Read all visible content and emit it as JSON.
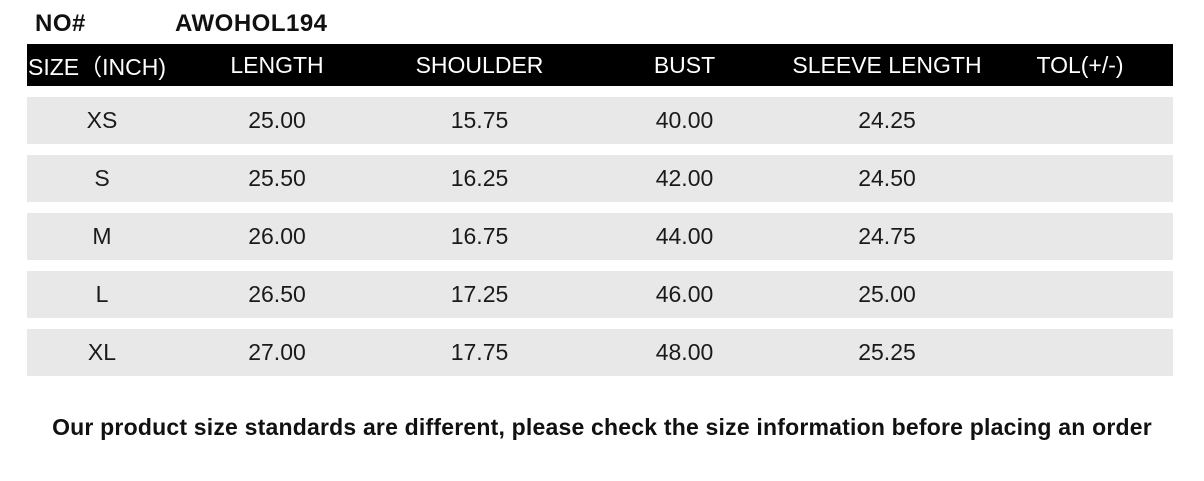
{
  "product": {
    "no_label": "NO#",
    "model_number": "AWOHOL194"
  },
  "table": {
    "columns": [
      "SIZE（INCH)",
      "LENGTH",
      "SHOULDER",
      "BUST",
      "SLEEVE LENGTH",
      "TOL(+/-)"
    ],
    "rows": [
      {
        "size": "XS",
        "length": "25.00",
        "shoulder": "15.75",
        "bust": "40.00",
        "sleeve_length": "24.25",
        "tol": ""
      },
      {
        "size": "S",
        "length": "25.50",
        "shoulder": "16.25",
        "bust": "42.00",
        "sleeve_length": "24.50",
        "tol": ""
      },
      {
        "size": "M",
        "length": "26.00",
        "shoulder": "16.75",
        "bust": "44.00",
        "sleeve_length": "24.75",
        "tol": ""
      },
      {
        "size": "L",
        "length": "26.50",
        "shoulder": "17.25",
        "bust": "46.00",
        "sleeve_length": "25.00",
        "tol": ""
      },
      {
        "size": "XL",
        "length": "27.00",
        "shoulder": "17.75",
        "bust": "48.00",
        "sleeve_length": "25.25",
        "tol": ""
      }
    ]
  },
  "note": "Our product size standards are different, please check the size information before placing an order",
  "colors": {
    "header_bg": "#000000",
    "header_text": "#ffffff",
    "row_bg": "#e8e8e8",
    "page_bg": "#ffffff",
    "text": "#111111"
  }
}
